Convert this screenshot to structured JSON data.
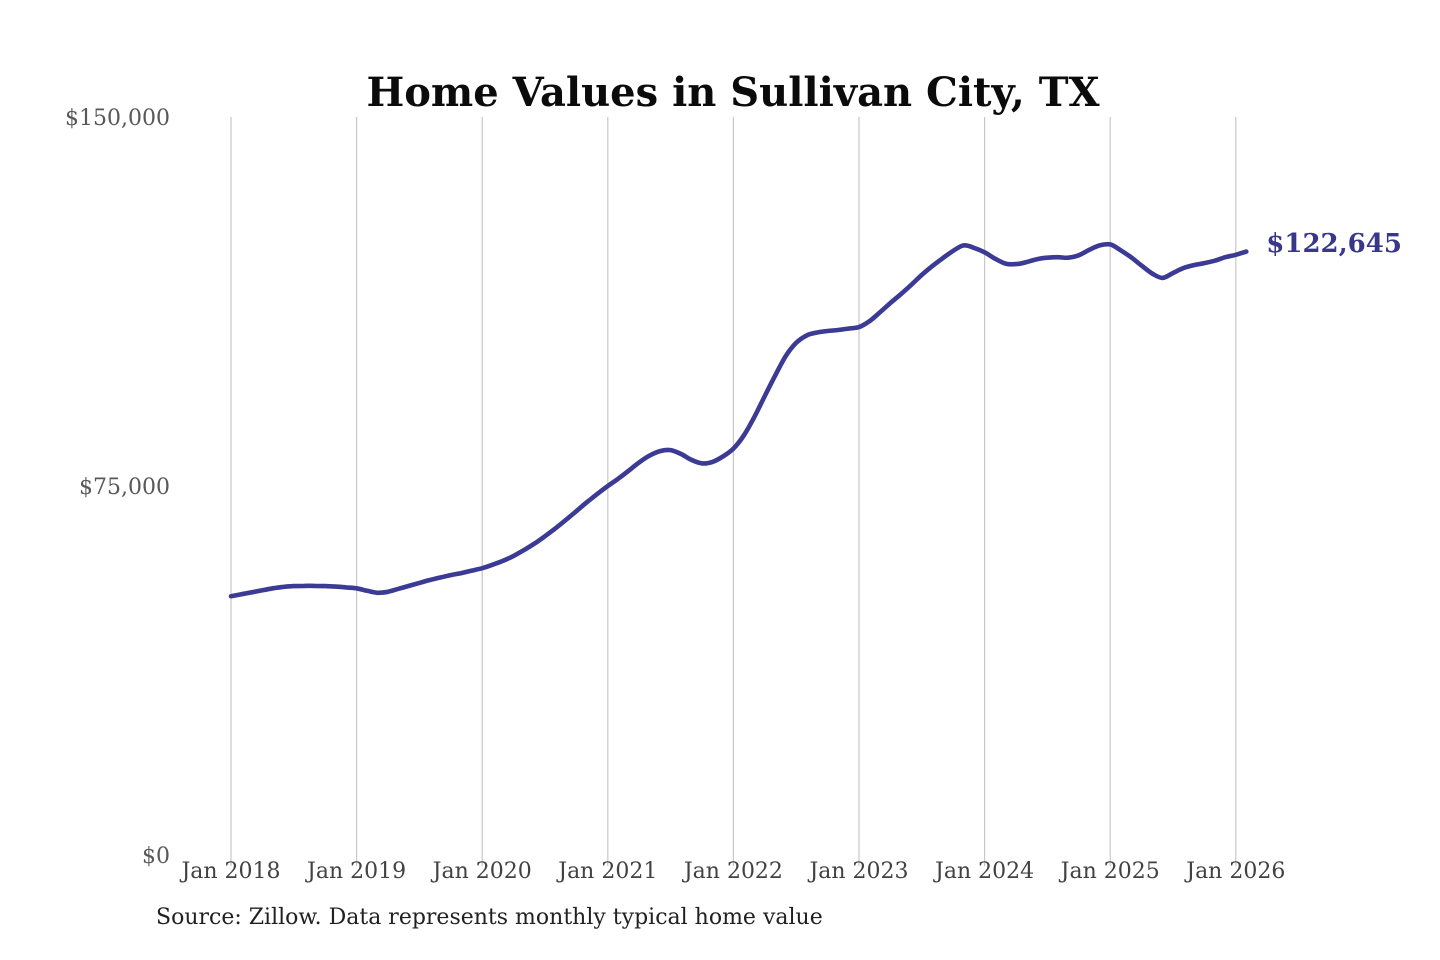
{
  "page": {
    "title": "Home Values in Sullivan City, TX",
    "source_note": "Source: Zillow. Data represents monthly typical home value"
  },
  "colors": {
    "line": "#3b3a94",
    "end_label": "#383789",
    "grid": "#c8c8c8",
    "x_axis_text": "#424242",
    "y_axis_text": "#585858",
    "title_text": "#0b0b0b",
    "source_text": "#212121",
    "background": "#ffffff"
  },
  "chart_data": {
    "type": "line",
    "title": "Home Values in Sullivan City, TX",
    "series_name": "Monthly typical home value",
    "unit": "USD",
    "frequency": "monthly",
    "start_month": "Jan 2018",
    "end_month": "Feb 2026",
    "latest_value": 122645,
    "end_label": "$122,645",
    "ylim": [
      0,
      150000
    ],
    "grid": "vertical-only",
    "legend": "none",
    "x_ticks": [
      "Jan 2018",
      "Jan 2019",
      "Jan 2020",
      "Jan 2021",
      "Jan 2022",
      "Jan 2023",
      "Jan 2024",
      "Jan 2025",
      "Jan 2026"
    ],
    "y_ticks": [
      {
        "value": 0,
        "label": "$0"
      },
      {
        "value": 75000,
        "label": "$75,000"
      },
      {
        "value": 150000,
        "label": "$150,000"
      }
    ],
    "values": [
      52600,
      53000,
      53400,
      53800,
      54200,
      54500,
      54650,
      54700,
      54700,
      54650,
      54550,
      54400,
      54200,
      53700,
      53300,
      53500,
      54100,
      54700,
      55300,
      55900,
      56400,
      56900,
      57300,
      57800,
      58300,
      59000,
      59800,
      60800,
      62000,
      63300,
      64800,
      66400,
      68100,
      69900,
      71700,
      73400,
      75000,
      76500,
      78100,
      79800,
      81200,
      82100,
      82300,
      81500,
      80300,
      79600,
      79900,
      81000,
      82600,
      85300,
      89000,
      93300,
      97500,
      101400,
      104100,
      105600,
      106200,
      106500,
      106700,
      107000,
      107300,
      108500,
      110300,
      112200,
      114000,
      115900,
      117900,
      119700,
      121300,
      122800,
      123900,
      123400,
      122500,
      121200,
      120200,
      120100,
      120500,
      121100,
      121400,
      121500,
      121400,
      121900,
      123000,
      123900,
      124100,
      122900,
      121500,
      119800,
      118200,
      117300,
      118300,
      119300,
      119900,
      120300,
      120800,
      121500,
      122000,
      122645
    ]
  }
}
